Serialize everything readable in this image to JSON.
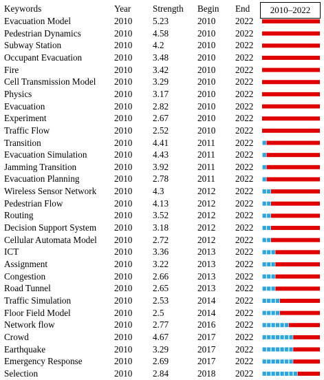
{
  "header": {
    "keywords": "Keywords",
    "year": "Year",
    "strength": "Strength",
    "begin": "Begin",
    "end": "End",
    "range": "2010–2022"
  },
  "chart_data": {
    "type": "table",
    "range_start": 2010,
    "range_end": 2022,
    "colors": {
      "burst": "#e00000",
      "normal": "#2aa7e0"
    },
    "rows": [
      {
        "keyword": "Evacuation Model",
        "year": "2010",
        "strength": "5.23",
        "begin": 2010,
        "end": 2022
      },
      {
        "keyword": "Pedestrian Dynamics",
        "year": "2010",
        "strength": "4.58",
        "begin": 2010,
        "end": 2022
      },
      {
        "keyword": "Subway Station",
        "year": "2010",
        "strength": "4.2",
        "begin": 2010,
        "end": 2022
      },
      {
        "keyword": "Occupant Evacuation",
        "year": "2010",
        "strength": "3.48",
        "begin": 2010,
        "end": 2022
      },
      {
        "keyword": "Fire",
        "year": "2010",
        "strength": "3.42",
        "begin": 2010,
        "end": 2022
      },
      {
        "keyword": "Cell Transmission Model",
        "year": "2010",
        "strength": "3.29",
        "begin": 2010,
        "end": 2022
      },
      {
        "keyword": "Physics",
        "year": "2010",
        "strength": "3.17",
        "begin": 2010,
        "end": 2022
      },
      {
        "keyword": "Evacuation",
        "year": "2010",
        "strength": "2.82",
        "begin": 2010,
        "end": 2022
      },
      {
        "keyword": "Experiment",
        "year": "2010",
        "strength": "2.67",
        "begin": 2010,
        "end": 2022
      },
      {
        "keyword": "Traffic Flow",
        "year": "2010",
        "strength": "2.52",
        "begin": 2010,
        "end": 2022
      },
      {
        "keyword": "Transition",
        "year": "2010",
        "strength": "4.41",
        "begin": 2011,
        "end": 2022
      },
      {
        "keyword": "Evacuation Simulation",
        "year": "2010",
        "strength": "4.43",
        "begin": 2011,
        "end": 2022
      },
      {
        "keyword": "Jamming Transition",
        "year": "2010",
        "strength": "3.92",
        "begin": 2011,
        "end": 2022
      },
      {
        "keyword": "Evacuation Planning",
        "year": "2010",
        "strength": "2.78",
        "begin": 2011,
        "end": 2022
      },
      {
        "keyword": "Wireless Sensor Network",
        "year": "2010",
        "strength": "4.3",
        "begin": 2012,
        "end": 2022
      },
      {
        "keyword": "Pedestrian Flow",
        "year": "2010",
        "strength": "4.13",
        "begin": 2012,
        "end": 2022
      },
      {
        "keyword": "Routing",
        "year": "2010",
        "strength": "3.52",
        "begin": 2012,
        "end": 2022
      },
      {
        "keyword": "Decision Support System",
        "year": "2010",
        "strength": "3.18",
        "begin": 2012,
        "end": 2022
      },
      {
        "keyword": "Cellular Automata Model",
        "year": "2010",
        "strength": "2.72",
        "begin": 2012,
        "end": 2022
      },
      {
        "keyword": "ICT",
        "year": "2010",
        "strength": "3.36",
        "begin": 2013,
        "end": 2022
      },
      {
        "keyword": "Assignment",
        "year": "2010",
        "strength": "3.22",
        "begin": 2013,
        "end": 2022
      },
      {
        "keyword": "Congestion",
        "year": "2010",
        "strength": "2.66",
        "begin": 2013,
        "end": 2022
      },
      {
        "keyword": "Road Tunnel",
        "year": "2010",
        "strength": "2.65",
        "begin": 2013,
        "end": 2022
      },
      {
        "keyword": "Traffic Simulation",
        "year": "2010",
        "strength": "2.53",
        "begin": 2014,
        "end": 2022
      },
      {
        "keyword": "Floor Field Model",
        "year": "2010",
        "strength": "2.5",
        "begin": 2014,
        "end": 2022
      },
      {
        "keyword": "Network flow",
        "year": "2010",
        "strength": "2.77",
        "begin": 2016,
        "end": 2022
      },
      {
        "keyword": "Crowd",
        "year": "2010",
        "strength": "4.67",
        "begin": 2017,
        "end": 2022
      },
      {
        "keyword": "Earthquake",
        "year": "2010",
        "strength": "3.29",
        "begin": 2017,
        "end": 2022
      },
      {
        "keyword": "Emergency Response",
        "year": "2010",
        "strength": "2.69",
        "begin": 2017,
        "end": 2022
      },
      {
        "keyword": "Selection",
        "year": "2010",
        "strength": "2.84",
        "begin": 2018,
        "end": 2022
      }
    ]
  }
}
